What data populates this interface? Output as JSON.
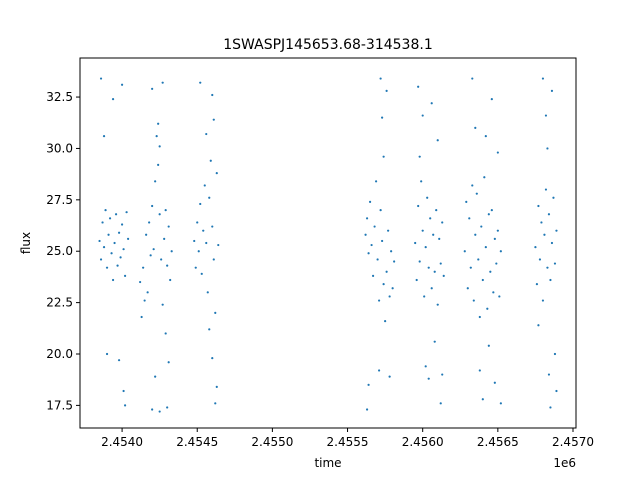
{
  "chart_data": {
    "type": "scatter",
    "title": "1SWASPJ145653.68-314538.1",
    "xlabel": "time",
    "ylabel": "flux",
    "x_offset_label": "1e6",
    "xlim": [
      2.45372,
      2.45702
    ],
    "ylim": [
      16.4,
      34.4
    ],
    "x_ticks": [
      2.454,
      2.4545,
      2.455,
      2.4555,
      2.456,
      2.4565,
      2.457
    ],
    "x_tick_labels": [
      "2.4540",
      "2.4545",
      "2.4550",
      "2.4555",
      "2.4560",
      "2.4565",
      "2.4570"
    ],
    "y_ticks": [
      17.5,
      20.0,
      22.5,
      25.0,
      27.5,
      30.0,
      32.5
    ],
    "y_tick_labels": [
      "17.5",
      "20.0",
      "22.5",
      "25.0",
      "27.5",
      "30.0",
      "32.5"
    ],
    "grid": false,
    "legend": "none",
    "colors": {
      "points": "#1f77b4",
      "axes": "#000000"
    },
    "series": [
      {
        "points": [
          [
            2.45385,
            25.5
          ],
          [
            2.45386,
            24.6
          ],
          [
            2.45387,
            26.4
          ],
          [
            2.45388,
            25.2
          ],
          [
            2.45389,
            27.0
          ],
          [
            2.4539,
            24.2
          ],
          [
            2.45391,
            25.8
          ],
          [
            2.45392,
            26.6
          ],
          [
            2.45393,
            24.9
          ],
          [
            2.45394,
            23.6
          ],
          [
            2.45395,
            25.4
          ],
          [
            2.45396,
            26.8
          ],
          [
            2.45397,
            24.3
          ],
          [
            2.45398,
            25.9
          ],
          [
            2.45399,
            24.7
          ],
          [
            2.454,
            26.3
          ],
          [
            2.45401,
            25.1
          ],
          [
            2.45402,
            23.8
          ],
          [
            2.45403,
            26.9
          ],
          [
            2.45404,
            25.6
          ],
          [
            2.45386,
            33.4
          ],
          [
            2.45388,
            30.6
          ],
          [
            2.4539,
            20.0
          ],
          [
            2.45394,
            32.4
          ],
          [
            2.45398,
            19.7
          ],
          [
            2.454,
            33.1
          ],
          [
            2.45401,
            18.2
          ],
          [
            2.45402,
            17.5
          ],
          [
            2.45412,
            23.5
          ],
          [
            2.45413,
            21.8
          ],
          [
            2.45414,
            24.2
          ],
          [
            2.45415,
            22.6
          ],
          [
            2.45416,
            25.8
          ],
          [
            2.45417,
            23.0
          ],
          [
            2.45418,
            26.4
          ],
          [
            2.45419,
            24.8
          ],
          [
            2.4542,
            27.2
          ],
          [
            2.45421,
            25.1
          ],
          [
            2.45422,
            28.4
          ],
          [
            2.45423,
            30.6
          ],
          [
            2.45424,
            29.2
          ],
          [
            2.45425,
            26.8
          ],
          [
            2.45426,
            24.6
          ],
          [
            2.45427,
            22.4
          ],
          [
            2.45428,
            25.6
          ],
          [
            2.45429,
            27.0
          ],
          [
            2.4543,
            24.3
          ],
          [
            2.45431,
            26.2
          ],
          [
            2.45432,
            23.6
          ],
          [
            2.45433,
            25.0
          ],
          [
            2.45424,
            31.2
          ],
          [
            2.45425,
            30.1
          ],
          [
            2.4542,
            32.9
          ],
          [
            2.45427,
            33.2
          ],
          [
            2.45422,
            18.9
          ],
          [
            2.4542,
            17.3
          ],
          [
            2.45425,
            17.2
          ],
          [
            2.4543,
            17.4
          ],
          [
            2.45429,
            21.0
          ],
          [
            2.45431,
            19.6
          ],
          [
            2.45448,
            25.5
          ],
          [
            2.45449,
            24.2
          ],
          [
            2.4545,
            26.4
          ],
          [
            2.45451,
            25.0
          ],
          [
            2.45452,
            27.3
          ],
          [
            2.45453,
            23.9
          ],
          [
            2.45454,
            26.0
          ],
          [
            2.45455,
            28.2
          ],
          [
            2.45456,
            25.4
          ],
          [
            2.45457,
            23.0
          ],
          [
            2.45458,
            27.6
          ],
          [
            2.45459,
            29.4
          ],
          [
            2.4546,
            26.2
          ],
          [
            2.45461,
            24.6
          ],
          [
            2.45462,
            22.0
          ],
          [
            2.45463,
            28.8
          ],
          [
            2.45464,
            25.3
          ],
          [
            2.45458,
            21.2
          ],
          [
            2.4546,
            19.8
          ],
          [
            2.45462,
            17.6
          ],
          [
            2.45456,
            30.7
          ],
          [
            2.45461,
            31.4
          ],
          [
            2.4546,
            32.6
          ],
          [
            2.45452,
            33.2
          ],
          [
            2.45463,
            18.4
          ],
          [
            2.45562,
            25.8
          ],
          [
            2.45563,
            26.6
          ],
          [
            2.45564,
            24.9
          ],
          [
            2.45565,
            27.4
          ],
          [
            2.45566,
            25.3
          ],
          [
            2.45567,
            23.8
          ],
          [
            2.45568,
            26.2
          ],
          [
            2.45569,
            28.4
          ],
          [
            2.4557,
            24.6
          ],
          [
            2.45571,
            22.6
          ],
          [
            2.45572,
            27.0
          ],
          [
            2.45573,
            25.5
          ],
          [
            2.45574,
            23.4
          ],
          [
            2.45575,
            21.6
          ],
          [
            2.45576,
            24.0
          ],
          [
            2.45577,
            26.0
          ],
          [
            2.45578,
            22.8
          ],
          [
            2.45579,
            25.0
          ],
          [
            2.4558,
            23.2
          ],
          [
            2.45581,
            24.5
          ],
          [
            2.45563,
            17.3
          ],
          [
            2.45564,
            18.5
          ],
          [
            2.45572,
            33.4
          ],
          [
            2.45573,
            31.5
          ],
          [
            2.45574,
            29.6
          ],
          [
            2.45571,
            19.2
          ],
          [
            2.45576,
            32.8
          ],
          [
            2.45578,
            18.9
          ],
          [
            2.45595,
            25.4
          ],
          [
            2.45596,
            23.6
          ],
          [
            2.45597,
            27.2
          ],
          [
            2.45598,
            24.5
          ],
          [
            2.45599,
            28.4
          ],
          [
            2.456,
            26.0
          ],
          [
            2.45601,
            22.8
          ],
          [
            2.45602,
            25.2
          ],
          [
            2.45603,
            27.6
          ],
          [
            2.45604,
            24.2
          ],
          [
            2.45605,
            26.6
          ],
          [
            2.45606,
            23.2
          ],
          [
            2.45607,
            25.8
          ],
          [
            2.45608,
            24.0
          ],
          [
            2.45609,
            27.0
          ],
          [
            2.4561,
            22.4
          ],
          [
            2.45611,
            25.6
          ],
          [
            2.45612,
            24.4
          ],
          [
            2.45613,
            26.4
          ],
          [
            2.45614,
            23.8
          ],
          [
            2.45598,
            29.6
          ],
          [
            2.456,
            31.6
          ],
          [
            2.45602,
            19.4
          ],
          [
            2.45604,
            18.8
          ],
          [
            2.45606,
            32.2
          ],
          [
            2.45608,
            20.6
          ],
          [
            2.4561,
            30.4
          ],
          [
            2.45612,
            17.6
          ],
          [
            2.45597,
            33.0
          ],
          [
            2.45613,
            19.0
          ],
          [
            2.45628,
            25.0
          ],
          [
            2.45629,
            27.4
          ],
          [
            2.4563,
            23.2
          ],
          [
            2.45631,
            26.6
          ],
          [
            2.45632,
            24.2
          ],
          [
            2.45633,
            28.2
          ],
          [
            2.45634,
            22.6
          ],
          [
            2.45635,
            25.8
          ],
          [
            2.45636,
            27.8
          ],
          [
            2.45637,
            24.6
          ],
          [
            2.45638,
            21.8
          ],
          [
            2.45639,
            26.2
          ],
          [
            2.4564,
            23.6
          ],
          [
            2.45641,
            28.6
          ],
          [
            2.45642,
            25.2
          ],
          [
            2.45643,
            22.2
          ],
          [
            2.45644,
            26.8
          ],
          [
            2.45645,
            24.0
          ],
          [
            2.45646,
            27.0
          ],
          [
            2.45647,
            23.0
          ],
          [
            2.45648,
            25.6
          ],
          [
            2.45649,
            24.4
          ],
          [
            2.4565,
            26.0
          ],
          [
            2.45651,
            22.8
          ],
          [
            2.45652,
            25.0
          ],
          [
            2.45633,
            33.4
          ],
          [
            2.45635,
            31.0
          ],
          [
            2.45638,
            19.2
          ],
          [
            2.4564,
            17.8
          ],
          [
            2.45642,
            30.6
          ],
          [
            2.45644,
            20.4
          ],
          [
            2.45646,
            32.4
          ],
          [
            2.45648,
            18.6
          ],
          [
            2.4565,
            29.8
          ],
          [
            2.45652,
            17.6
          ],
          [
            2.45675,
            25.2
          ],
          [
            2.45676,
            23.4
          ],
          [
            2.45677,
            27.2
          ],
          [
            2.45678,
            24.6
          ],
          [
            2.45679,
            26.4
          ],
          [
            2.4568,
            22.6
          ],
          [
            2.45681,
            25.8
          ],
          [
            2.45682,
            28.0
          ],
          [
            2.45683,
            24.2
          ],
          [
            2.45684,
            26.8
          ],
          [
            2.45685,
            23.6
          ],
          [
            2.45686,
            25.4
          ],
          [
            2.45687,
            27.6
          ],
          [
            2.45688,
            24.4
          ],
          [
            2.45689,
            26.0
          ],
          [
            2.4568,
            33.4
          ],
          [
            2.45682,
            31.6
          ],
          [
            2.45684,
            19.0
          ],
          [
            2.45685,
            17.4
          ],
          [
            2.45686,
            32.8
          ],
          [
            2.45688,
            20.0
          ],
          [
            2.45677,
            21.4
          ],
          [
            2.45683,
            30.0
          ],
          [
            2.45689,
            18.2
          ]
        ]
      }
    ]
  }
}
